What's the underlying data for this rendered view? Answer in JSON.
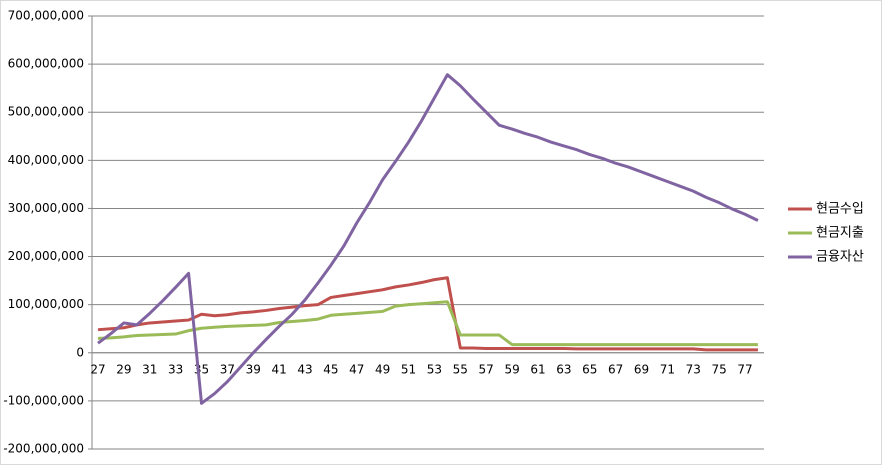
{
  "chart_data": {
    "type": "line",
    "categories": [
      "27",
      null,
      "29",
      null,
      "31",
      null,
      "33",
      null,
      "35",
      null,
      "37",
      null,
      "39",
      null,
      "41",
      null,
      "43",
      null,
      "45",
      null,
      "47",
      null,
      "49",
      null,
      "51",
      null,
      "53",
      null,
      "55",
      null,
      "57",
      null,
      "59",
      null,
      "61",
      null,
      "63",
      null,
      "65",
      null,
      "67",
      null,
      "69",
      null,
      "71",
      null,
      "73",
      null,
      "75",
      null,
      "77",
      null
    ],
    "series": [
      {
        "name": "현금수입",
        "color": "#c0504d",
        "values": [
          48000000,
          50000000,
          52000000,
          58000000,
          62000000,
          64000000,
          66000000,
          68000000,
          80000000,
          77000000,
          79000000,
          83000000,
          85000000,
          88000000,
          92000000,
          95000000,
          98000000,
          100000000,
          115000000,
          119000000,
          123000000,
          127000000,
          131000000,
          137000000,
          141000000,
          146000000,
          152000000,
          156000000,
          10000000,
          10000000,
          9000000,
          9000000,
          9000000,
          9000000,
          9000000,
          9000000,
          9000000,
          8000000,
          8000000,
          8000000,
          8000000,
          8000000,
          8000000,
          8000000,
          8000000,
          8000000,
          8000000,
          6000000,
          6000000,
          6000000,
          6000000,
          6000000
        ]
      },
      {
        "name": "현금지출",
        "color": "#9bbb59",
        "values": [
          30000000,
          31000000,
          33000000,
          36000000,
          37000000,
          38000000,
          39000000,
          46000000,
          51000000,
          53000000,
          55000000,
          56000000,
          57000000,
          58000000,
          63000000,
          65000000,
          67000000,
          70000000,
          78000000,
          80000000,
          82000000,
          84000000,
          86000000,
          97000000,
          100000000,
          102000000,
          104000000,
          106000000,
          37000000,
          37000000,
          37000000,
          37000000,
          17000000,
          17000000,
          17000000,
          17000000,
          17000000,
          17000000,
          17000000,
          17000000,
          17000000,
          17000000,
          17000000,
          17000000,
          17000000,
          17000000,
          17000000,
          17000000,
          17000000,
          17000000,
          17000000,
          17000000
        ]
      },
      {
        "name": "금융자산",
        "color": "#8064a2",
        "values": [
          20000000,
          40000000,
          62000000,
          58000000,
          82000000,
          108000000,
          136000000,
          165000000,
          -105000000,
          -85000000,
          -60000000,
          -30000000,
          0,
          28000000,
          55000000,
          80000000,
          110000000,
          145000000,
          182000000,
          222000000,
          270000000,
          313000000,
          360000000,
          398000000,
          438000000,
          482000000,
          530000000,
          578000000,
          555000000,
          527000000,
          500000000,
          473000000,
          465000000,
          456000000,
          448000000,
          438000000,
          430000000,
          422000000,
          412000000,
          404000000,
          394000000,
          386000000,
          376000000,
          366000000,
          356000000,
          346000000,
          336000000,
          323000000,
          312000000,
          299000000,
          288000000,
          275000000
        ]
      }
    ],
    "ylim": [
      -200000000,
      700000000
    ],
    "yticks": [
      {
        "value": -200000000,
        "label": "-200,000,000"
      },
      {
        "value": -100000000,
        "label": "-100,000,000"
      },
      0,
      {
        "value": 100000000,
        "label": "100,000,000"
      },
      {
        "value": 200000000,
        "label": "200,000,000"
      },
      {
        "value": 300000000,
        "label": "300,000,000"
      },
      {
        "value": 400000000,
        "label": "400,000,000"
      },
      {
        "value": 500000000,
        "label": "500,000,000"
      },
      {
        "value": 600000000,
        "label": "600,000,000"
      },
      {
        "value": 700000000,
        "label": "700,000,000"
      }
    ],
    "grid": true,
    "legend": "right"
  }
}
